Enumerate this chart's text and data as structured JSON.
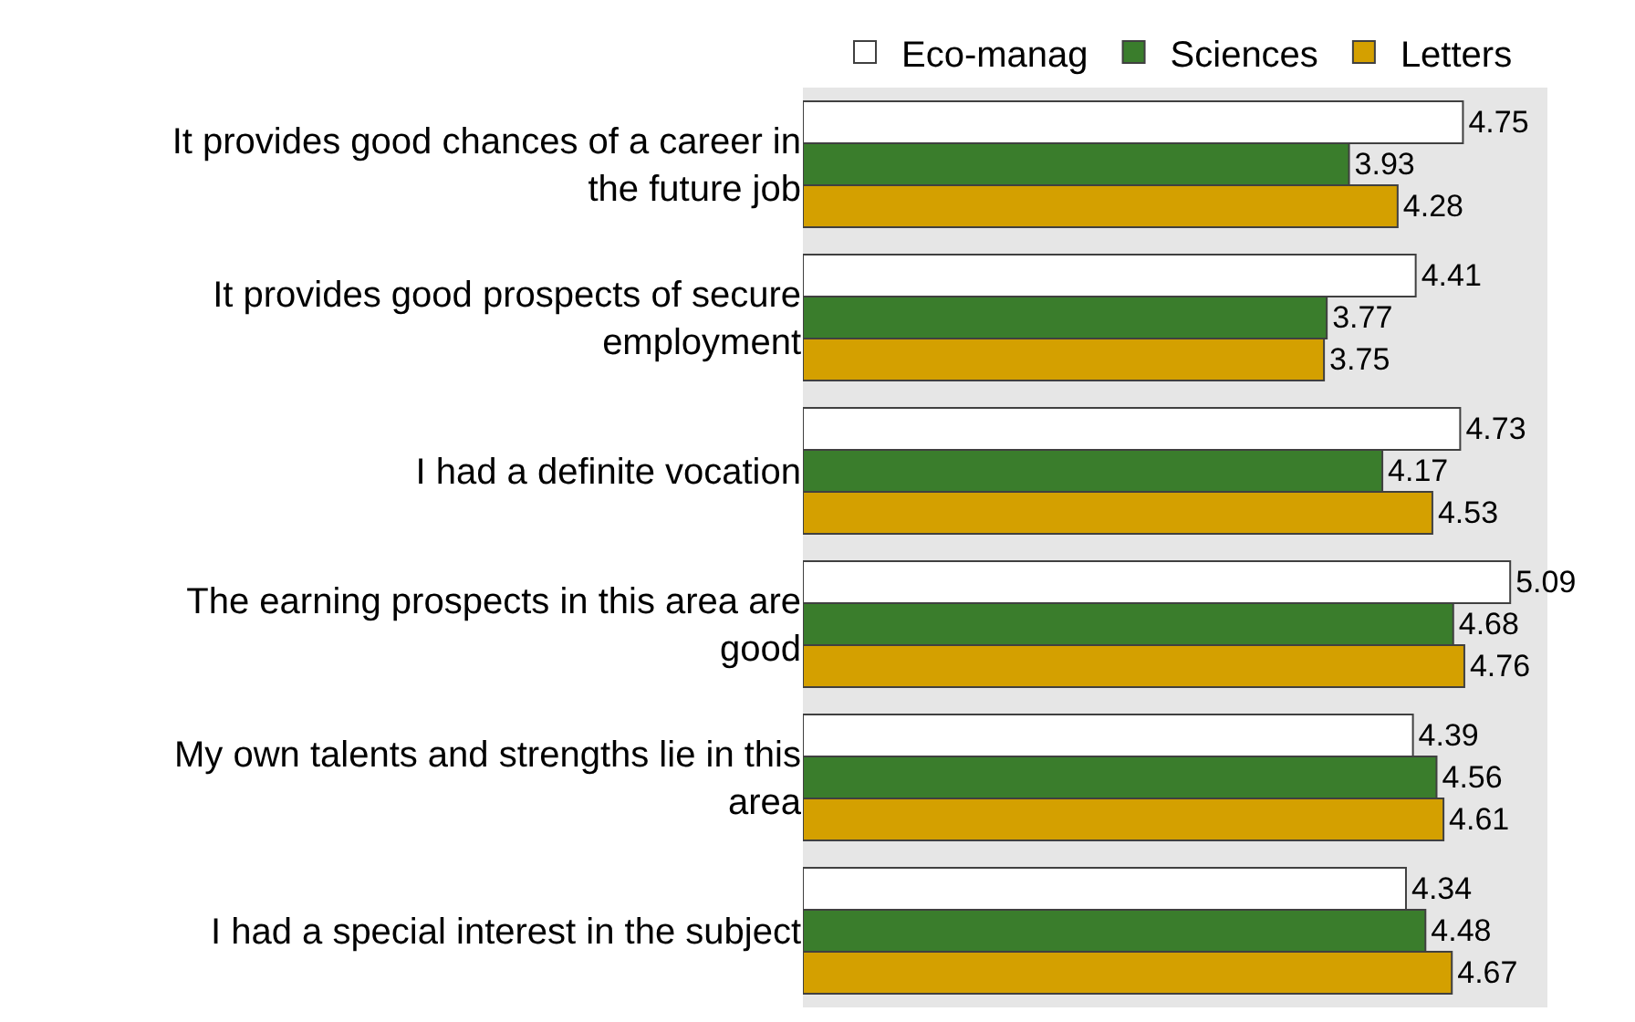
{
  "chart_data": {
    "type": "bar",
    "orientation": "horizontal",
    "data_labels": true,
    "legend": "top",
    "grid": false,
    "categories": [
      "It provides good chances of a career in the future job",
      "It provides good prospects of secure employment",
      "I had a definite vocation",
      "The earning prospects in this area are good",
      "My own talents and strengths lie in this area",
      "I had a special interest in the subject"
    ],
    "series": [
      {
        "name": "Eco-manag",
        "color": "#ffffff",
        "values": [
          4.75,
          4.41,
          4.73,
          5.09,
          4.39,
          4.34
        ]
      },
      {
        "name": "Sciences",
        "color": "#3a7d2c",
        "values": [
          3.93,
          3.77,
          4.17,
          4.68,
          4.56,
          4.48
        ]
      },
      {
        "name": "Letters",
        "color": "#d4a000",
        "values": [
          4.28,
          3.75,
          4.53,
          4.76,
          4.61,
          4.67
        ]
      }
    ]
  }
}
